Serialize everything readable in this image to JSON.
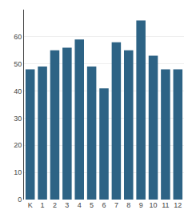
{
  "chart_data": {
    "type": "bar",
    "categories": [
      "K",
      "1",
      "2",
      "3",
      "4",
      "5",
      "6",
      "7",
      "8",
      "9",
      "10",
      "11",
      "12"
    ],
    "values": [
      48,
      49,
      55,
      56,
      59,
      49,
      41,
      58,
      55,
      66,
      53,
      48,
      48
    ],
    "color": "#2d6385",
    "ylim": [
      0,
      70
    ],
    "yticks": [
      0,
      10,
      20,
      30,
      40,
      50,
      60
    ],
    "grid": true
  }
}
